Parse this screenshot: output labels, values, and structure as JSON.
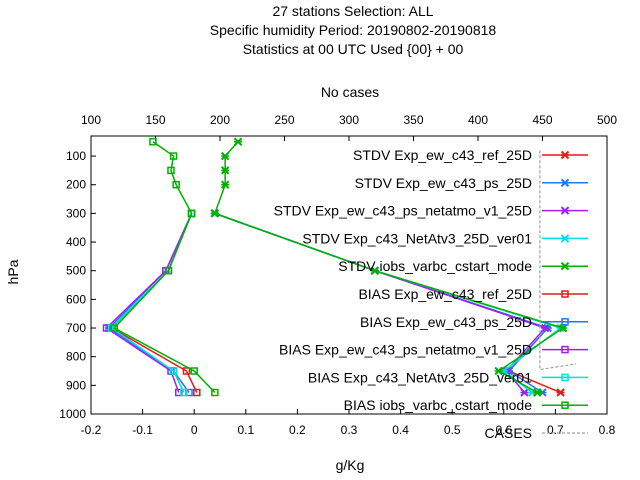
{
  "chart_data": {
    "type": "line",
    "title_lines": [
      "27 stations Selection: ALL",
      "Specific humidity  Period: 20190802-20190818",
      "Statistics at 00 UTC  Used {00} + 00"
    ],
    "x2label": "No cases",
    "xlabel": "g/Kg",
    "ylabel": "hPa",
    "xlim": [
      -0.2,
      0.8
    ],
    "x2lim": [
      100,
      500
    ],
    "ylim": [
      1000,
      30
    ],
    "x_ticks": [
      "-0.2",
      "-0.1",
      "0",
      "0.1",
      "0.2",
      "0.3",
      "0.4",
      "0.5",
      "0.6",
      "0.7",
      "0.8"
    ],
    "x2_ticks": [
      "100",
      "150",
      "200",
      "250",
      "300",
      "350",
      "400",
      "450",
      "500"
    ],
    "y_ticks": [
      "100",
      "200",
      "300",
      "400",
      "500",
      "600",
      "700",
      "800",
      "900",
      "1000"
    ],
    "levels": [
      50,
      100,
      150,
      200,
      300,
      500,
      700,
      850,
      925
    ],
    "series": [
      {
        "name": "STDV Exp_ew_c43_ref_25D",
        "color": "#e41a1c",
        "marker": "x",
        "values": [
          null,
          null,
          null,
          null,
          0.04,
          0.35,
          0.685,
          0.61,
          0.71
        ]
      },
      {
        "name": "STDV Exp_ew_c43_ps_25D",
        "color": "#1f78f0",
        "marker": "x",
        "values": [
          null,
          null,
          null,
          null,
          0.04,
          0.35,
          0.685,
          0.61,
          0.675
        ]
      },
      {
        "name": "STDV Exp_ew_c43_ps_netatmo_v1_25D",
        "color": "#a020f0",
        "marker": "x",
        "values": [
          null,
          null,
          null,
          null,
          0.04,
          0.35,
          0.68,
          0.605,
          0.64
        ]
      },
      {
        "name": "STDV Exp_c43_NetAtv3_25D_ver01",
        "color": "#00e0e0",
        "marker": "x",
        "values": [
          null,
          null,
          null,
          null,
          0.04,
          0.35,
          0.71,
          0.6,
          0.655
        ]
      },
      {
        "name": "STDV iobs_varbc_cstart_mode",
        "color": "#00b000",
        "marker": "x",
        "values": [
          0.085,
          0.06,
          0.06,
          0.06,
          0.04,
          0.35,
          0.715,
          0.59,
          0.665
        ]
      },
      {
        "name": "BIAS Exp_ew_c43_ref_25D",
        "color": "#e41a1c",
        "marker": "s",
        "values": [
          null,
          null,
          null,
          null,
          -0.005,
          -0.05,
          -0.16,
          -0.015,
          0.005
        ]
      },
      {
        "name": "BIAS Exp_ew_c43_ps_25D",
        "color": "#1f78f0",
        "marker": "s",
        "values": [
          null,
          null,
          null,
          null,
          -0.005,
          -0.055,
          -0.165,
          -0.04,
          -0.01
        ]
      },
      {
        "name": "BIAS Exp_ew_c43_ps_netatmo_v1_25D",
        "color": "#a020f0",
        "marker": "s",
        "values": [
          null,
          null,
          null,
          null,
          -0.005,
          -0.055,
          -0.17,
          -0.045,
          -0.03
        ]
      },
      {
        "name": "BIAS Exp_c43_NetAtv3_25D_ver01",
        "color": "#00e0e0",
        "marker": "s",
        "values": [
          null,
          null,
          null,
          null,
          -0.005,
          -0.05,
          -0.16,
          -0.04,
          -0.02
        ]
      },
      {
        "name": "BIAS iobs_varbc_cstart_mode",
        "color": "#00b000",
        "marker": "s",
        "values": [
          -0.08,
          -0.04,
          -0.045,
          -0.035,
          -0.005,
          -0.05,
          -0.155,
          0.0,
          0.04
        ]
      }
    ],
    "cases": {
      "name": "CASES",
      "color": "#a0a0a0",
      "points": [
        [
          0.67,
          80
        ],
        [
          0.67,
          225
        ],
        [
          0.67,
          845
        ],
        [
          0.74,
          825
        ]
      ]
    },
    "legend_position": "top-right",
    "grid": false
  }
}
